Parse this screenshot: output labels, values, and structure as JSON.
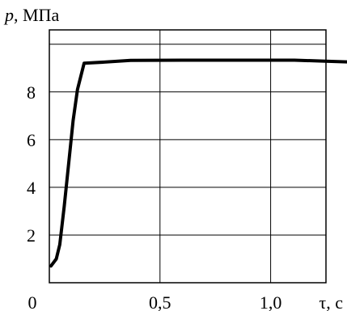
{
  "chart_data": {
    "type": "line",
    "title": "",
    "ylabel_italic": "p",
    "ylabel_rest": ", МПа",
    "xlabel": "τ, с",
    "xlim": [
      0,
      1.25
    ],
    "ylim": [
      0,
      10.6
    ],
    "grid": true,
    "x_ticks": [
      {
        "value": 0,
        "label": "0"
      },
      {
        "value": 0.5,
        "label": "0,5"
      },
      {
        "value": 1.0,
        "label": "1,0"
      }
    ],
    "y_ticks": [
      {
        "value": 2,
        "label": "2"
      },
      {
        "value": 4,
        "label": "4"
      },
      {
        "value": 6,
        "label": "6"
      },
      {
        "value": 8,
        "label": "8"
      }
    ],
    "x_grid": [
      0.5,
      1.0
    ],
    "y_grid": [
      2,
      4,
      6,
      8,
      10
    ],
    "series": [
      {
        "color": "#000000",
        "points": [
          [
            0.0,
            0.7
          ],
          [
            0.012,
            1.0
          ],
          [
            0.02,
            1.6
          ],
          [
            0.03,
            3.2
          ],
          [
            0.04,
            5.0
          ],
          [
            0.05,
            6.8
          ],
          [
            0.06,
            8.1
          ],
          [
            0.075,
            9.2
          ],
          [
            0.12,
            9.25
          ],
          [
            0.18,
            9.32
          ],
          [
            0.3,
            9.33
          ],
          [
            0.45,
            9.33
          ],
          [
            0.55,
            9.33
          ],
          [
            0.62,
            9.29
          ],
          [
            0.7,
            9.24
          ],
          [
            0.78,
            9.27
          ],
          [
            0.86,
            9.32
          ],
          [
            0.94,
            9.36
          ],
          [
            1.0,
            9.38
          ],
          [
            1.05,
            9.37
          ],
          [
            1.1,
            9.31
          ],
          [
            1.15,
            9.29
          ],
          [
            1.2,
            9.3
          ],
          [
            1.25,
            9.33
          ]
        ]
      }
    ]
  }
}
